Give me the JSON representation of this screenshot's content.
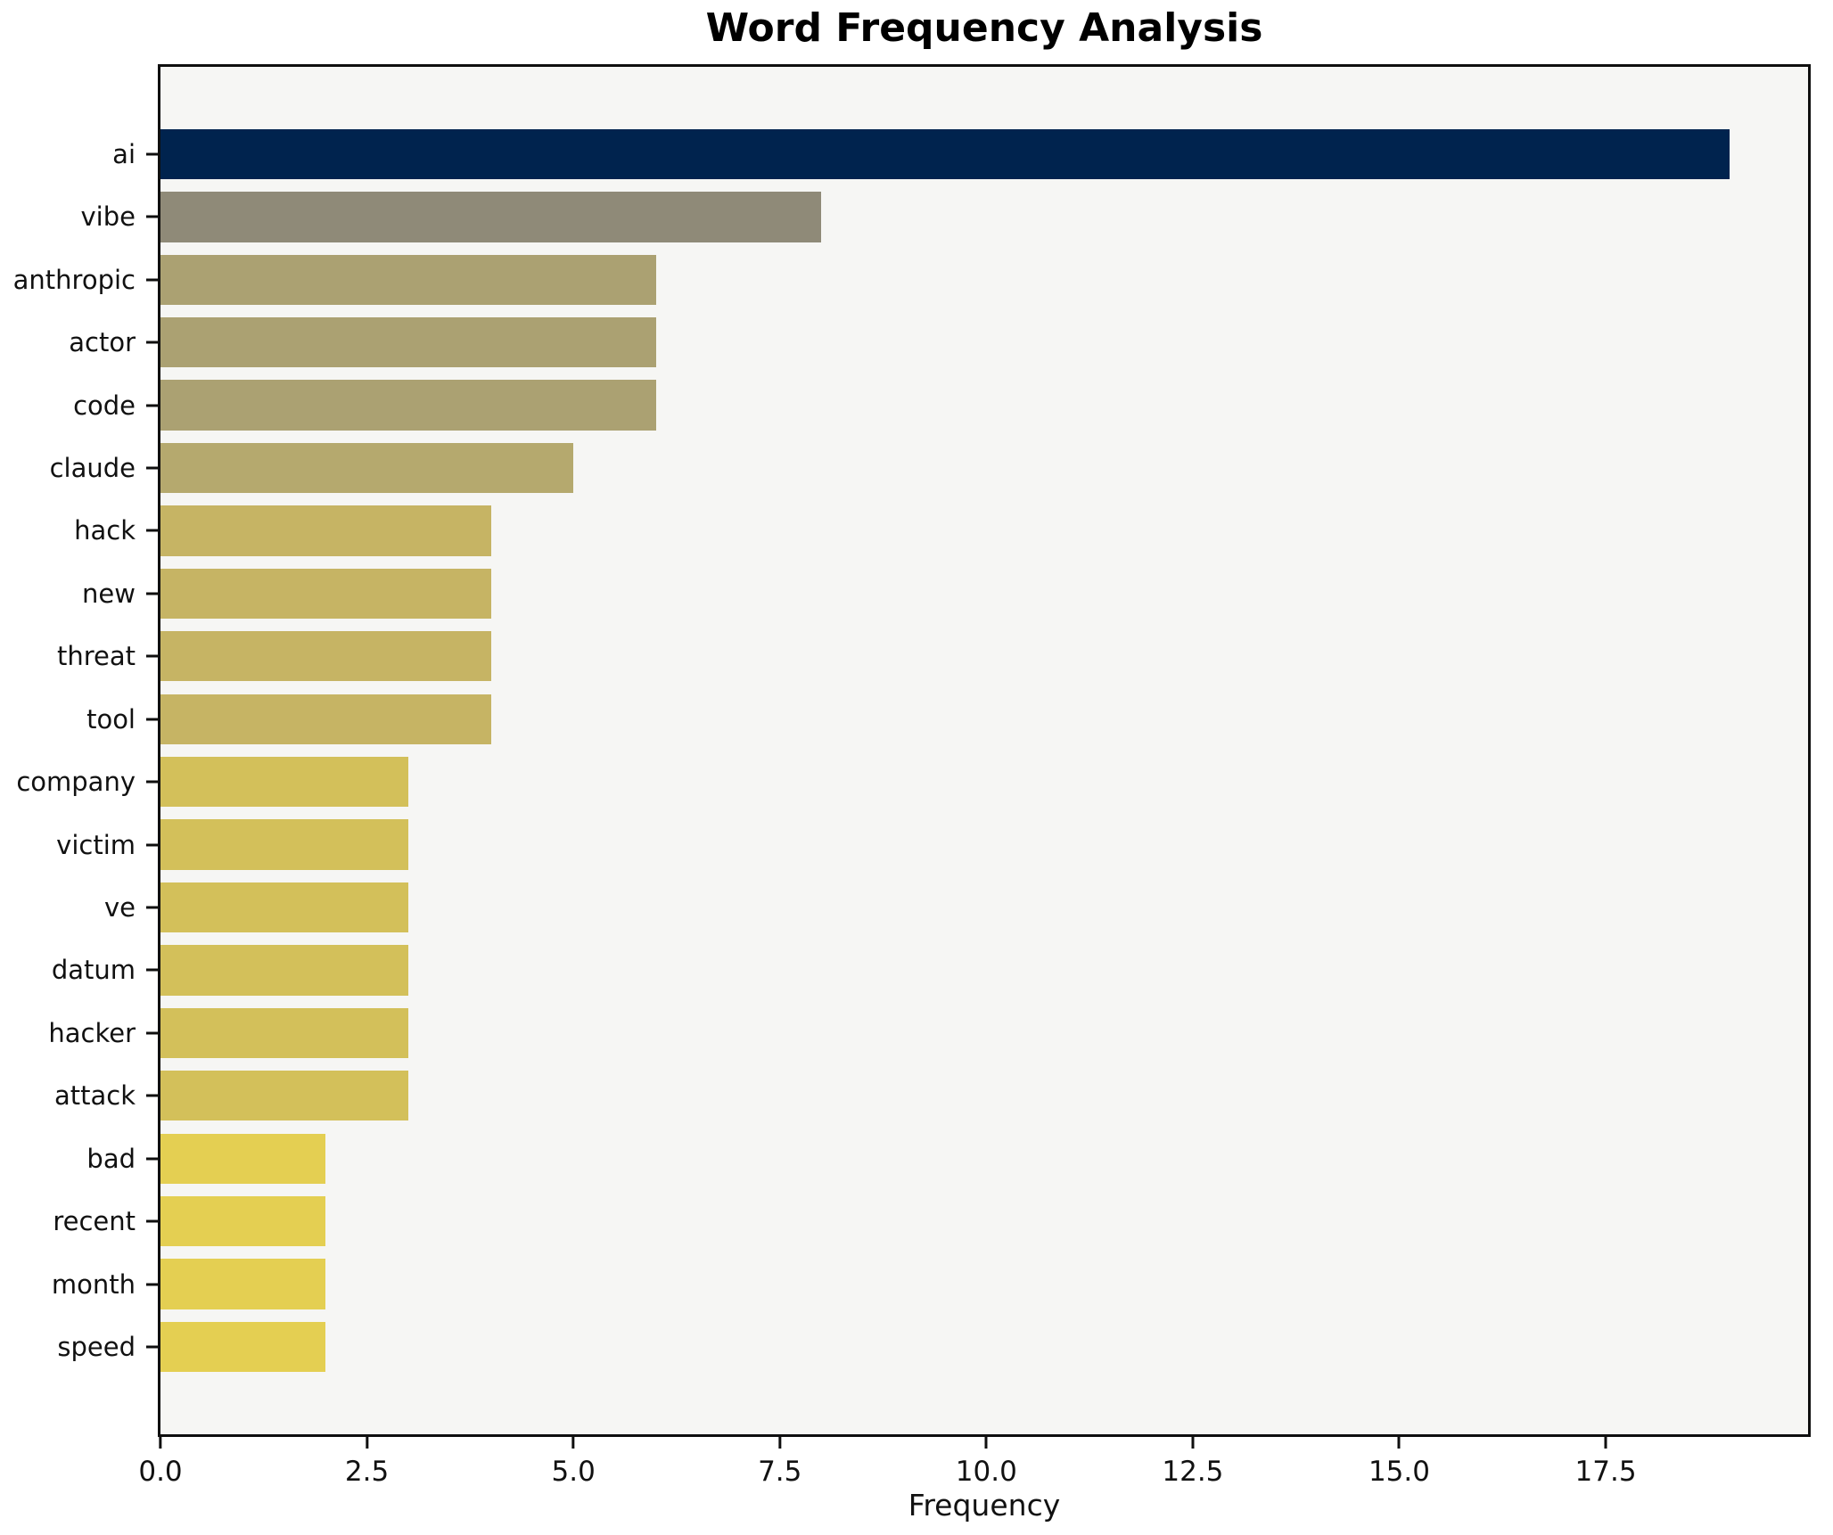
{
  "chart_data": {
    "type": "bar",
    "orientation": "horizontal",
    "title": "Word Frequency Analysis",
    "xlabel": "Frequency",
    "ylabel": "",
    "categories": [
      "ai",
      "vibe",
      "anthropic",
      "actor",
      "code",
      "claude",
      "hack",
      "new",
      "threat",
      "tool",
      "company",
      "victim",
      "ve",
      "datum",
      "hacker",
      "attack",
      "bad",
      "recent",
      "month",
      "speed"
    ],
    "values": [
      19,
      8,
      6,
      6,
      6,
      5,
      4,
      4,
      4,
      4,
      3,
      3,
      3,
      3,
      3,
      3,
      2,
      2,
      2,
      2
    ],
    "bar_colors": [
      "#00234e",
      "#8f8a78",
      "#aba172",
      "#aba172",
      "#aba172",
      "#b5a96e",
      "#c6b464",
      "#c6b464",
      "#c6b464",
      "#c6b464",
      "#d3c05a",
      "#d3c05a",
      "#d3c05a",
      "#d3c05a",
      "#d3c05a",
      "#d3c05a",
      "#e4cf52",
      "#e4cf52",
      "#e4cf52",
      "#e4cf52"
    ],
    "xlim": [
      0,
      19.95
    ],
    "xticks": [
      0,
      2.5,
      5,
      7.5,
      10,
      12.5,
      15,
      17.5
    ],
    "xtick_labels": [
      "0.0",
      "2.5",
      "5.0",
      "7.5",
      "10.0",
      "12.5",
      "15.0",
      "17.5"
    ],
    "grid": false,
    "legend_position": "none",
    "plot_background": "#f6f6f4",
    "figure_background": "#ffffff",
    "spine_color": "#0f0f0f"
  }
}
